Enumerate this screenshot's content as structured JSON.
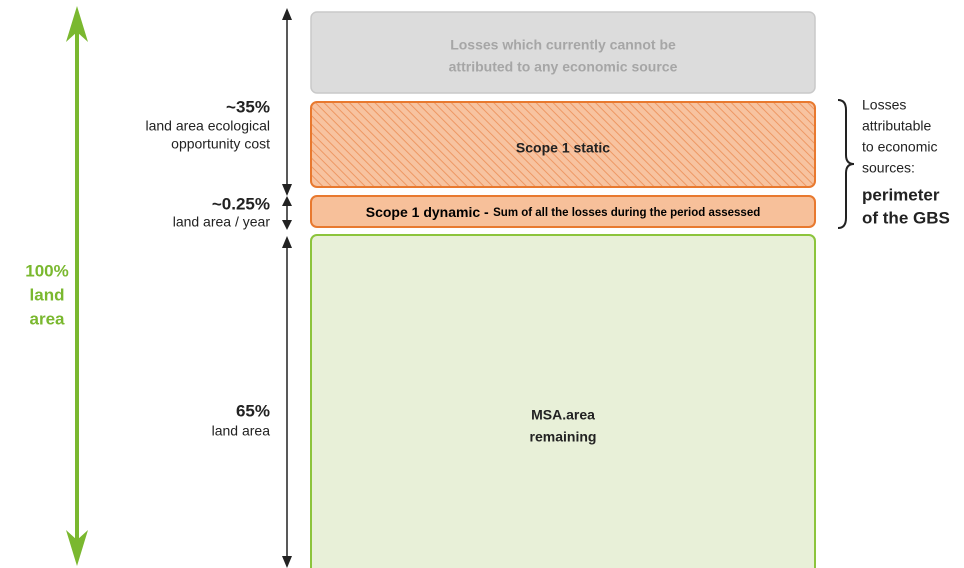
{
  "left": {
    "lines": [
      "100%",
      "land",
      "area"
    ]
  },
  "labels": [
    {
      "value": "~35%",
      "lines": [
        "land area ecological",
        "opportunity cost"
      ]
    },
    {
      "value": "~0.25%",
      "lines": [
        "land area / year"
      ]
    },
    {
      "value": "65%",
      "lines": [
        "land area"
      ]
    }
  ],
  "boxes": {
    "unattributed": {
      "lines": [
        "Losses which currently cannot be",
        "attributed to any economic source"
      ]
    },
    "static": {
      "label": "Scope 1 static"
    },
    "dynamic": {
      "label": "Scope 1 dynamic -",
      "detail": "Sum of all the losses during the period assessed"
    },
    "remaining": {
      "lines": [
        "MSA.area",
        "remaining"
      ]
    }
  },
  "bracket": {
    "lines": [
      "Losses",
      "attributable",
      "to economic",
      "sources:"
    ],
    "emphasis": [
      "perimeter",
      "of the GBS"
    ]
  }
}
